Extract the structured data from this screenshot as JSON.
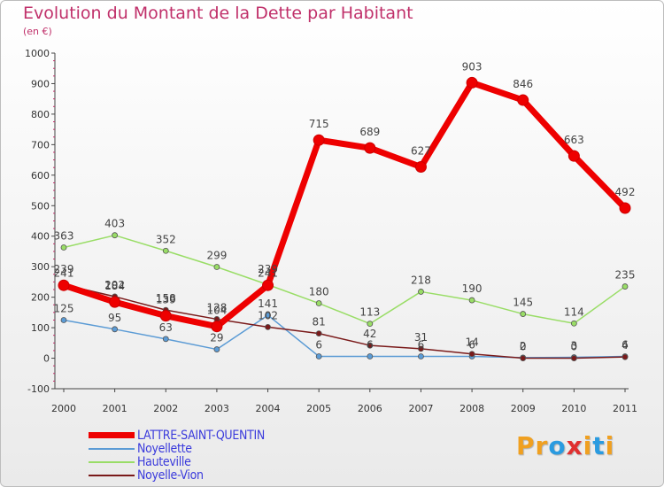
{
  "title": "Evolution du Montant de la Dette par Habitant",
  "subtitle": "(en €)",
  "logo": {
    "text": "Proxiti",
    "letters": [
      "P",
      "r",
      "o",
      "x",
      "i",
      "t",
      "i"
    ],
    "colors": [
      "#f0a020",
      "#f0a020",
      "#2a9be0",
      "#e03030",
      "#f0a020",
      "#2a9be0",
      "#f0a020"
    ]
  },
  "chart_data": {
    "type": "line",
    "title": "Evolution du Montant de la Dette par Habitant",
    "subtitle": "(en €)",
    "xlabel": "",
    "ylabel": "",
    "x": [
      "2000",
      "2001",
      "2002",
      "2003",
      "2004",
      "2005",
      "2006",
      "2007",
      "2008",
      "2009",
      "2010",
      "2011"
    ],
    "ylim": [
      -100,
      1000
    ],
    "yticks": [
      "-100",
      "0",
      "100",
      "200",
      "300",
      "400",
      "500",
      "600",
      "700",
      "800",
      "900",
      "1000"
    ],
    "grid": false,
    "legend_position": "bottom-left",
    "series": [
      {
        "name": "LATTRE-SAINT-QUENTIN",
        "color": "#ee0000",
        "width": 7,
        "radius": 6,
        "values": [
          239,
          184,
          139,
          104,
          239,
          715,
          689,
          627,
          903,
          846,
          663,
          492
        ],
        "labels": [
          "239",
          "184",
          "139",
          "104",
          "239",
          "715",
          "689",
          "627",
          "903",
          "846",
          "663",
          "492"
        ]
      },
      {
        "name": "Noyellette",
        "color": "#5b9bd5",
        "width": 1.5,
        "radius": 3,
        "values": [
          125,
          95,
          63,
          29,
          141,
          6,
          6,
          6,
          6,
          2,
          3,
          6
        ],
        "labels": [
          "125",
          "95",
          "63",
          "29",
          "141",
          "6",
          "6",
          "6",
          "6",
          "2",
          "3",
          "6"
        ]
      },
      {
        "name": "Hauteville",
        "color": "#99dd66",
        "width": 1.5,
        "radius": 3,
        "values": [
          363,
          403,
          352,
          299,
          241,
          180,
          113,
          218,
          190,
          145,
          114,
          235
        ],
        "labels": [
          "363",
          "403",
          "352",
          "299",
          "241",
          "180",
          "113",
          "218",
          "190",
          "145",
          "114",
          "235"
        ]
      },
      {
        "name": "Noyelle-Vion",
        "color": "#7a1a1a",
        "width": 1.5,
        "radius": 3,
        "values": [
          241,
          202,
          158,
          128,
          102,
          81,
          42,
          31,
          14,
          0,
          0,
          4
        ],
        "labels": [
          "241",
          "202",
          "158",
          "128",
          "102",
          "81",
          "42",
          "31",
          "14",
          "0",
          "0",
          "4"
        ]
      }
    ]
  }
}
